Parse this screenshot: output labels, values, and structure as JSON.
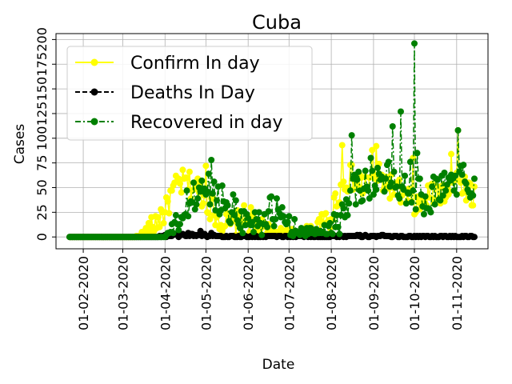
{
  "chart_data": {
    "type": "line",
    "title": "Cuba",
    "xlabel": "Date",
    "ylabel": "Cases",
    "x_start": "2020-01-22",
    "x_end": "2020-11-14",
    "xlim": [
      "2020-01-12",
      "2020-11-24"
    ],
    "ylim": [
      -12,
      206
    ],
    "x_tick_dates": [
      "2020-02-01",
      "2020-03-01",
      "2020-04-01",
      "2020-05-01",
      "2020-06-01",
      "2020-07-01",
      "2020-08-01",
      "2020-09-01",
      "2020-10-01",
      "2020-11-01"
    ],
    "x_tick_labels": [
      "01-02-2020",
      "01-03-2020",
      "01-04-2020",
      "01-05-2020",
      "01-06-2020",
      "01-07-2020",
      "01-08-2020",
      "01-09-2020",
      "01-10-2020",
      "01-11-2020"
    ],
    "y_ticks": [
      0,
      25,
      50,
      75,
      100,
      125,
      150,
      175,
      200
    ],
    "y_tick_labels": [
      "0",
      "25",
      "50",
      "75",
      "100",
      "125",
      "150",
      "175",
      "200"
    ],
    "grid": true,
    "legend_position": "upper-left",
    "series": [
      {
        "name": "Confirm In day",
        "color": "#ffff00",
        "linestyle": "solid",
        "marker": "circle",
        "anchors": [
          [
            "2020-01-22",
            0
          ],
          [
            "2020-03-10",
            0
          ],
          [
            "2020-03-15",
            3
          ],
          [
            "2020-03-20",
            8
          ],
          [
            "2020-03-25",
            15
          ],
          [
            "2020-03-31",
            25
          ],
          [
            "2020-04-05",
            40
          ],
          [
            "2020-04-10",
            52
          ],
          [
            "2020-04-15",
            55
          ],
          [
            "2020-04-20",
            52
          ],
          [
            "2020-04-25",
            50
          ],
          [
            "2020-04-30",
            40
          ],
          [
            "2020-05-05",
            30
          ],
          [
            "2020-05-10",
            20
          ],
          [
            "2020-05-15",
            15
          ],
          [
            "2020-05-20",
            12
          ],
          [
            "2020-05-25",
            15
          ],
          [
            "2020-05-31",
            20
          ],
          [
            "2020-06-05",
            15
          ],
          [
            "2020-06-10",
            10
          ],
          [
            "2020-06-20",
            6
          ],
          [
            "2020-07-01",
            4
          ],
          [
            "2020-07-10",
            5
          ],
          [
            "2020-07-20",
            8
          ],
          [
            "2020-07-31",
            18
          ],
          [
            "2020-08-05",
            40
          ],
          [
            "2020-08-10",
            55
          ],
          [
            "2020-08-15",
            60
          ],
          [
            "2020-08-20",
            55
          ],
          [
            "2020-08-25",
            50
          ],
          [
            "2020-08-31",
            58
          ],
          [
            "2020-09-05",
            60
          ],
          [
            "2020-09-10",
            55
          ],
          [
            "2020-09-15",
            50
          ],
          [
            "2020-09-20",
            45
          ],
          [
            "2020-09-25",
            40
          ],
          [
            "2020-09-30",
            35
          ],
          [
            "2020-10-05",
            30
          ],
          [
            "2020-10-10",
            40
          ],
          [
            "2020-10-15",
            45
          ],
          [
            "2020-10-20",
            45
          ],
          [
            "2020-10-25",
            50
          ],
          [
            "2020-10-31",
            60
          ],
          [
            "2020-11-05",
            55
          ],
          [
            "2020-11-10",
            48
          ],
          [
            "2020-11-14",
            40
          ]
        ],
        "noise": 14,
        "peaks": [
          [
            "2020-08-09",
            93
          ],
          [
            "2020-08-31",
            88
          ],
          [
            "2020-09-03",
            92
          ],
          [
            "2020-09-30",
            80
          ],
          [
            "2020-11-02",
            108
          ],
          [
            "2020-10-28",
            84
          ],
          [
            "2020-05-01",
            72
          ],
          [
            "2020-04-02",
            40
          ]
        ]
      },
      {
        "name": "Deaths In Day",
        "color": "#000000",
        "linestyle": "dashed",
        "marker": "circle",
        "anchors": [
          [
            "2020-01-22",
            0
          ],
          [
            "2020-03-20",
            0
          ],
          [
            "2020-03-31",
            1
          ],
          [
            "2020-04-10",
            2
          ],
          [
            "2020-04-25",
            2
          ],
          [
            "2020-05-10",
            1
          ],
          [
            "2020-06-01",
            0.5
          ],
          [
            "2020-08-01",
            0.5
          ],
          [
            "2020-09-01",
            1
          ],
          [
            "2020-10-01",
            0.5
          ],
          [
            "2020-11-14",
            0.5
          ]
        ],
        "noise": 2,
        "peaks": [
          [
            "2020-04-27",
            6
          ],
          [
            "2020-05-05",
            4
          ],
          [
            "2020-04-18",
            4
          ]
        ]
      },
      {
        "name": "Recovered in day",
        "color": "#008000",
        "linestyle": "dashdot",
        "marker": "circle",
        "anchors": [
          [
            "2020-01-22",
            0
          ],
          [
            "2020-04-01",
            0
          ],
          [
            "2020-04-08",
            10
          ],
          [
            "2020-04-15",
            25
          ],
          [
            "2020-04-22",
            40
          ],
          [
            "2020-04-30",
            50
          ],
          [
            "2020-05-05",
            48
          ],
          [
            "2020-05-10",
            40
          ],
          [
            "2020-05-20",
            30
          ],
          [
            "2020-05-31",
            15
          ],
          [
            "2020-06-10",
            18
          ],
          [
            "2020-06-20",
            25
          ],
          [
            "2020-06-30",
            15
          ],
          [
            "2020-07-10",
            5
          ],
          [
            "2020-07-20",
            5
          ],
          [
            "2020-07-31",
            10
          ],
          [
            "2020-08-05",
            15
          ],
          [
            "2020-08-10",
            30
          ],
          [
            "2020-08-15",
            45
          ],
          [
            "2020-08-20",
            50
          ],
          [
            "2020-08-31",
            55
          ],
          [
            "2020-09-10",
            60
          ],
          [
            "2020-09-20",
            55
          ],
          [
            "2020-09-30",
            45
          ],
          [
            "2020-10-10",
            40
          ],
          [
            "2020-10-20",
            50
          ],
          [
            "2020-10-31",
            60
          ],
          [
            "2020-11-10",
            55
          ],
          [
            "2020-11-14",
            50
          ]
        ],
        "noise": 18,
        "peaks": [
          [
            "2020-10-01",
            196
          ],
          [
            "2020-09-21",
            127
          ],
          [
            "2020-09-15",
            112
          ],
          [
            "2020-08-16",
            103
          ],
          [
            "2020-10-03",
            85
          ],
          [
            "2020-11-02",
            108
          ],
          [
            "2020-05-05",
            78
          ],
          [
            "2020-09-28",
            76
          ],
          [
            "2020-08-30",
            80
          ]
        ]
      }
    ]
  }
}
